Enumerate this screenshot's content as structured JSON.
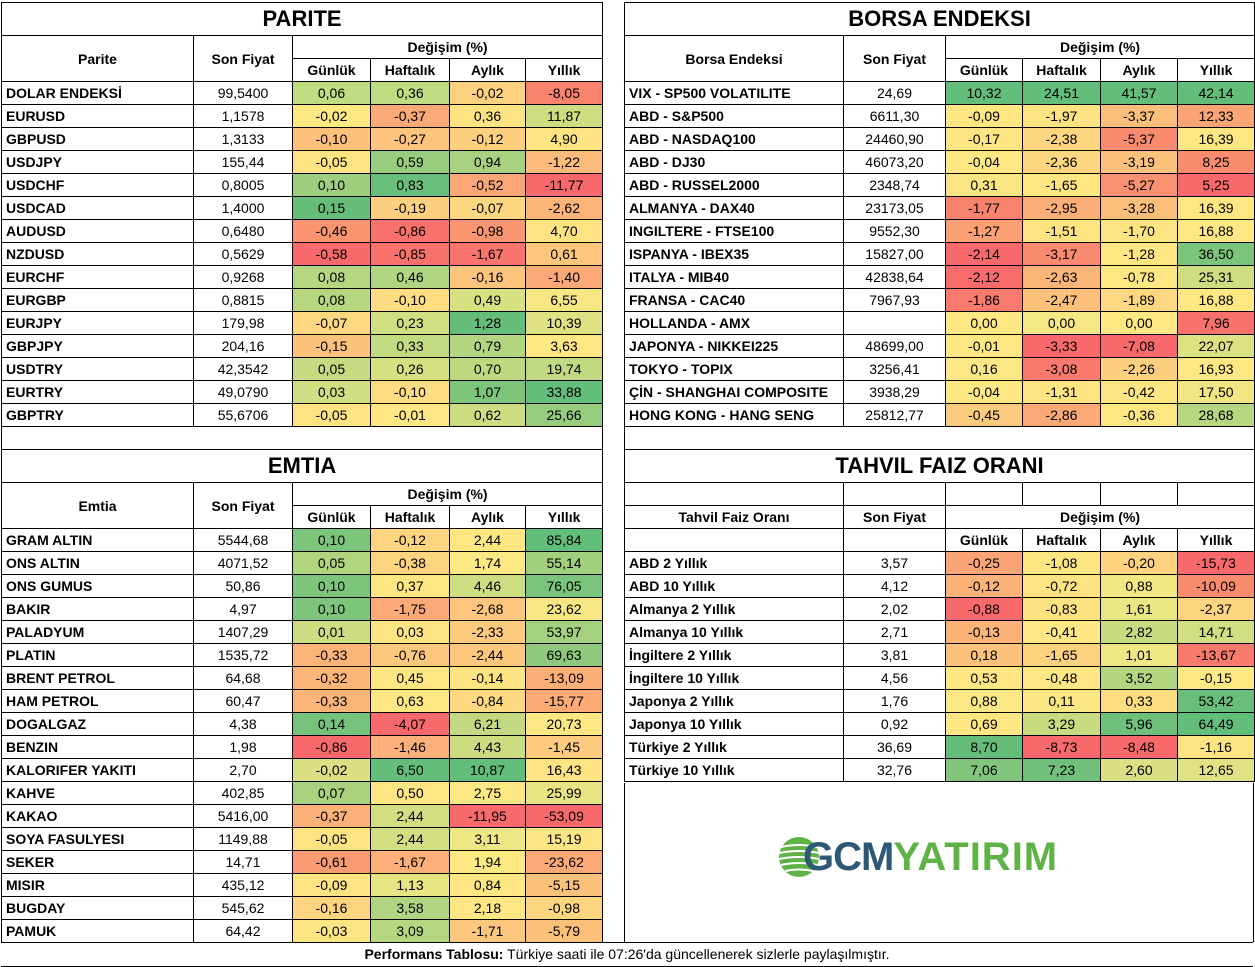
{
  "headers": {
    "son_fiyat": "Son Fiyat",
    "degisim": "Değişim (%)",
    "gunluk": "Günlük",
    "haftalik": "Haftalık",
    "aylik": "Aylık",
    "yillik": "Yıllık"
  },
  "parite": {
    "title": "PARITE",
    "col_name": "Parite",
    "rows": [
      {
        "name": "DOLAR ENDEKSİ",
        "price": "99,5400",
        "d": "0,06",
        "w": "0,36",
        "m": "-0,02",
        "y": "-8,05"
      },
      {
        "name": "EURUSD",
        "price": "1,1578",
        "d": "-0,02",
        "w": "-0,37",
        "m": "0,36",
        "y": "11,87"
      },
      {
        "name": "GBPUSD",
        "price": "1,3133",
        "d": "-0,10",
        "w": "-0,27",
        "m": "-0,12",
        "y": "4,90"
      },
      {
        "name": "USDJPY",
        "price": "155,44",
        "d": "-0,05",
        "w": "0,59",
        "m": "0,94",
        "y": "-1,22"
      },
      {
        "name": "USDCHF",
        "price": "0,8005",
        "d": "0,10",
        "w": "0,83",
        "m": "-0,52",
        "y": "-11,77"
      },
      {
        "name": "USDCAD",
        "price": "1,4000",
        "d": "0,15",
        "w": "-0,19",
        "m": "-0,07",
        "y": "-2,62"
      },
      {
        "name": "AUDUSD",
        "price": "0,6480",
        "d": "-0,46",
        "w": "-0,86",
        "m": "-0,98",
        "y": "4,70"
      },
      {
        "name": "NZDUSD",
        "price": "0,5629",
        "d": "-0,58",
        "w": "-0,85",
        "m": "-1,67",
        "y": "0,61"
      },
      {
        "name": "EURCHF",
        "price": "0,9268",
        "d": "0,08",
        "w": "0,46",
        "m": "-0,16",
        "y": "-1,40"
      },
      {
        "name": "EURGBP",
        "price": "0,8815",
        "d": "0,08",
        "w": "-0,10",
        "m": "0,49",
        "y": "6,55"
      },
      {
        "name": "EURJPY",
        "price": "179,98",
        "d": "-0,07",
        "w": "0,23",
        "m": "1,28",
        "y": "10,39"
      },
      {
        "name": "GBPJPY",
        "price": "204,16",
        "d": "-0,15",
        "w": "0,33",
        "m": "0,79",
        "y": "3,63"
      },
      {
        "name": "USDTRY",
        "price": "42,3542",
        "d": "0,05",
        "w": "0,26",
        "m": "0,70",
        "y": "19,74"
      },
      {
        "name": "EURTRY",
        "price": "49,0790",
        "d": "0,03",
        "w": "-0,10",
        "m": "1,07",
        "y": "33,88"
      },
      {
        "name": "GBPTRY",
        "price": "55,6706",
        "d": "-0,05",
        "w": "-0,01",
        "m": "0,62",
        "y": "25,66"
      }
    ],
    "colors": [
      [
        "#c0dc80",
        "#c0dc80",
        "#fdd17f",
        "#f8836c"
      ],
      [
        "#fde984",
        "#fbaa77",
        "#fee383",
        "#cddd82"
      ],
      [
        "#fcc07b",
        "#fcc47c",
        "#fdd07f",
        "#fee483"
      ],
      [
        "#fde382",
        "#98cd7e",
        "#a8d27f",
        "#fcbb7a"
      ],
      [
        "#9fcf7e",
        "#6abe7b",
        "#fba676",
        "#f8696b"
      ],
      [
        "#66bd7a",
        "#fdd07f",
        "#fdd680",
        "#fcb479"
      ],
      [
        "#f99370",
        "#f8716c",
        "#fa9572",
        "#fee383"
      ],
      [
        "#f8696b",
        "#f8726c",
        "#f8746d",
        "#fdc67d"
      ],
      [
        "#b6d780",
        "#aed580",
        "#fcc47c",
        "#fba976"
      ],
      [
        "#b6d780",
        "#fddc82",
        "#d8e082",
        "#f7e684"
      ],
      [
        "#fdd880",
        "#d1df82",
        "#66bd7a",
        "#dfe283"
      ],
      [
        "#fbc27c",
        "#c3da81",
        "#b3d680",
        "#ffe884"
      ],
      [
        "#c5da81",
        "#d6df82",
        "#bed880",
        "#c2d981"
      ],
      [
        "#d0dd82",
        "#fddc82",
        "#7ec57c",
        "#63be7b"
      ],
      [
        "#fee383",
        "#fee784",
        "#cbdc81",
        "#96cc7e"
      ]
    ]
  },
  "borsa": {
    "title": "BORSA ENDEKSI",
    "col_name": "Borsa Endeksi",
    "rows": [
      {
        "name": "VIX  - SP500 VOLATILITE",
        "price": "24,69",
        "d": "10,32",
        "w": "24,51",
        "m": "41,57",
        "y": "42,14"
      },
      {
        "name": "ABD - S&P500",
        "price": "6611,30",
        "d": "-0,09",
        "w": "-1,97",
        "m": "-3,37",
        "y": "12,33"
      },
      {
        "name": "ABD - NASDAQ100",
        "price": "24460,90",
        "d": "-0,17",
        "w": "-2,38",
        "m": "-5,37",
        "y": "16,39"
      },
      {
        "name": "ABD - DJ30",
        "price": "46073,20",
        "d": "-0,04",
        "w": "-2,36",
        "m": "-3,19",
        "y": "8,25"
      },
      {
        "name": "ABD - RUSSEL2000",
        "price": "2348,74",
        "d": "0,31",
        "w": "-1,65",
        "m": "-5,27",
        "y": "5,25"
      },
      {
        "name": "ALMANYA - DAX40",
        "price": "23173,05",
        "d": "-1,77",
        "w": "-2,95",
        "m": "-3,28",
        "y": "16,39"
      },
      {
        "name": "INGILTERE - FTSE100",
        "price": "9552,30",
        "d": "-1,27",
        "w": "-1,51",
        "m": "-1,70",
        "y": "16,88"
      },
      {
        "name": "ISPANYA - IBEX35",
        "price": "15827,00",
        "d": "-2,14",
        "w": "-3,17",
        "m": "-1,28",
        "y": "36,50"
      },
      {
        "name": "ITALYA - MIB40",
        "price": "42838,64",
        "d": "-2,12",
        "w": "-2,63",
        "m": "-0,78",
        "y": "25,31"
      },
      {
        "name": "FRANSA - CAC40",
        "price": "7967,93",
        "d": "-1,86",
        "w": "-2,47",
        "m": "-1,89",
        "y": "16,88"
      },
      {
        "name": "HOLLANDA - AMX",
        "price": "",
        "d": "0,00",
        "w": "0,00",
        "m": "0,00",
        "y": "7,96"
      },
      {
        "name": "JAPONYA - NIKKEI225",
        "price": "48699,00",
        "d": "-0,01",
        "w": "-3,33",
        "m": "-7,08",
        "y": "22,07"
      },
      {
        "name": "TOKYO - TOPIX",
        "price": "3256,41",
        "d": "0,16",
        "w": "-3,08",
        "m": "-2,26",
        "y": "16,93"
      },
      {
        "name": "ÇİN - SHANGHAI COMPOSITE",
        "price": "3938,29",
        "d": "-0,04",
        "w": "-1,31",
        "m": "-0,42",
        "y": "17,50"
      },
      {
        "name": "HONG KONG - HANG SENG",
        "price": "25812,77",
        "d": "-0,45",
        "w": "-2,86",
        "m": "-0,36",
        "y": "28,68"
      }
    ],
    "colors": [
      [
        "#63be7b",
        "#63be7b",
        "#63be7b",
        "#63be7b"
      ],
      [
        "#fee783",
        "#fee382",
        "#fcbe7b",
        "#fba476"
      ],
      [
        "#fee583",
        "#fed680",
        "#f98b6f",
        "#fee683"
      ],
      [
        "#fee884",
        "#fdd680",
        "#fcc27c",
        "#f98b6f"
      ],
      [
        "#fae585",
        "#fee683",
        "#f9906f",
        "#f8696b"
      ],
      [
        "#f8836d",
        "#fcae77",
        "#fcbf7b",
        "#fee683"
      ],
      [
        "#fba174",
        "#fde382",
        "#fde482",
        "#ffe884"
      ],
      [
        "#f8696b",
        "#f9896f",
        "#fee683",
        "#7cc47c"
      ],
      [
        "#f86d6b",
        "#fcb579",
        "#ffe884",
        "#cfdd82"
      ],
      [
        "#f87b6d",
        "#fcc07b",
        "#fed781",
        "#ffe884"
      ],
      [
        "#fde883",
        "#f4e784",
        "#fee884",
        "#f8726c"
      ],
      [
        "#fee884",
        "#f8696b",
        "#f8696b",
        "#dce182"
      ],
      [
        "#fbe785",
        "#f97a6d",
        "#fdcf7f",
        "#ffe784"
      ],
      [
        "#fee884",
        "#fde482",
        "#fee583",
        "#f2e583"
      ],
      [
        "#fccb7e",
        "#fbaa77",
        "#fee683",
        "#b5d780"
      ]
    ]
  },
  "emtia": {
    "title": "EMTIA",
    "col_name": "Emtia",
    "rows": [
      {
        "name": "GRAM ALTIN",
        "price": "5544,68",
        "d": "0,10",
        "w": "-0,12",
        "m": "2,44",
        "y": "85,84"
      },
      {
        "name": "ONS ALTIN",
        "price": "4071,52",
        "d": "0,05",
        "w": "-0,38",
        "m": "1,74",
        "y": "55,14"
      },
      {
        "name": "ONS GUMUS",
        "price": "50,86",
        "d": "0,10",
        "w": "0,37",
        "m": "4,46",
        "y": "76,05"
      },
      {
        "name": "BAKIR",
        "price": "4,97",
        "d": "0,10",
        "w": "-1,75",
        "m": "-2,68",
        "y": "23,62"
      },
      {
        "name": "PALADYUM",
        "price": "1407,29",
        "d": "0,01",
        "w": "0,03",
        "m": "-2,33",
        "y": "53,97"
      },
      {
        "name": "PLATIN",
        "price": "1535,72",
        "d": "-0,33",
        "w": "-0,76",
        "m": "-2,44",
        "y": "69,63"
      },
      {
        "name": "BRENT PETROL",
        "price": "64,68",
        "d": "-0,32",
        "w": "0,45",
        "m": "-0,14",
        "y": "-13,09"
      },
      {
        "name": "HAM PETROL",
        "price": "60,47",
        "d": "-0,33",
        "w": "0,63",
        "m": "-0,84",
        "y": "-15,77"
      },
      {
        "name": "DOGALGAZ",
        "price": "4,38",
        "d": "0,14",
        "w": "-4,07",
        "m": "6,21",
        "y": "20,73"
      },
      {
        "name": "BENZIN",
        "price": "1,98",
        "d": "-0,86",
        "w": "-1,46",
        "m": "4,43",
        "y": "-1,45"
      },
      {
        "name": "KALORIFER YAKITI",
        "price": "2,70",
        "d": "-0,02",
        "w": "6,50",
        "m": "10,87",
        "y": "16,43"
      },
      {
        "name": "KAHVE",
        "price": "402,85",
        "d": "0,07",
        "w": "0,50",
        "m": "2,75",
        "y": "25,99"
      },
      {
        "name": "KAKAO",
        "price": "5416,00",
        "d": "-0,37",
        "w": "2,44",
        "m": "-11,95",
        "y": "-53,09"
      },
      {
        "name": "SOYA FASULYESI",
        "price": "1149,88",
        "d": "-0,05",
        "w": "2,44",
        "m": "3,11",
        "y": "15,19"
      },
      {
        "name": "SEKER",
        "price": "14,71",
        "d": "-0,61",
        "w": "-1,67",
        "m": "1,94",
        "y": "-23,62"
      },
      {
        "name": "MISIR",
        "price": "435,12",
        "d": "-0,09",
        "w": "1,13",
        "m": "0,84",
        "y": "-5,15"
      },
      {
        "name": "BUGDAY",
        "price": "545,62",
        "d": "-0,16",
        "w": "3,58",
        "m": "2,18",
        "y": "-0,98"
      },
      {
        "name": "PAMUK",
        "price": "64,42",
        "d": "-0,03",
        "w": "3,09",
        "m": "-1,71",
        "y": "-5,79"
      }
    ],
    "colors": [
      [
        "#7ec57c",
        "#fdd480",
        "#fde783",
        "#63be7b"
      ],
      [
        "#b1d57f",
        "#fdd480",
        "#fde984",
        "#a2cf7e"
      ],
      [
        "#7ec57c",
        "#fee683",
        "#cddd82",
        "#7bc47c"
      ],
      [
        "#7ec57c",
        "#fbaa77",
        "#fdc57d",
        "#f6e784"
      ],
      [
        "#ccdc81",
        "#fee583",
        "#fdca7e",
        "#a4d17f"
      ],
      [
        "#fcb479",
        "#fcc87d",
        "#fdc77d",
        "#8fc97d"
      ],
      [
        "#fcb579",
        "#fee783",
        "#fee383",
        "#fbaf77"
      ],
      [
        "#fcb479",
        "#fee783",
        "#fed981",
        "#fcab77"
      ],
      [
        "#76c27c",
        "#f8696b",
        "#c2d981",
        "#fde684"
      ],
      [
        "#f8696b",
        "#fcaf78",
        "#cbdc81",
        "#fdca7e"
      ],
      [
        "#dae083",
        "#63be7b",
        "#63be7b",
        "#fde383"
      ],
      [
        "#a9d27f",
        "#fee683",
        "#fde984",
        "#e8e483"
      ],
      [
        "#fcb178",
        "#d3de82",
        "#f8696b",
        "#f8696b"
      ],
      [
        "#fee383",
        "#d3de82",
        "#efe784",
        "#fee584"
      ],
      [
        "#f99b72",
        "#fcaf78",
        "#fde984",
        "#fba976"
      ],
      [
        "#fde382",
        "#e7e483",
        "#fee683",
        "#fcc27c"
      ],
      [
        "#fdd580",
        "#b0d580",
        "#fde784",
        "#fdd680"
      ],
      [
        "#fee584",
        "#b5d780",
        "#fdc87d",
        "#fcc07b"
      ]
    ]
  },
  "tahvil": {
    "title": "TAHVIL FAIZ ORANI",
    "col_name": "Tahvil Faiz Oranı",
    "rows": [
      {
        "name": "ABD 2 Yıllık",
        "price": "3,57",
        "d": "-0,25",
        "w": "-1,08",
        "m": "-0,20",
        "y": "-15,73"
      },
      {
        "name": "ABD 10 Yıllık",
        "price": "4,12",
        "d": "-0,12",
        "w": "-0,72",
        "m": "0,88",
        "y": "-10,09"
      },
      {
        "name": "Almanya 2 Yıllık",
        "price": "2,02",
        "d": "-0,88",
        "w": "-0,83",
        "m": "1,61",
        "y": "-2,37"
      },
      {
        "name": "Almanya 10 Yıllık",
        "price": "2,71",
        "d": "-0,13",
        "w": "-0,41",
        "m": "2,82",
        "y": "14,71"
      },
      {
        "name": "İngiltere 2 Yıllık",
        "price": "3,81",
        "d": "0,18",
        "w": "-1,65",
        "m": "1,01",
        "y": "-13,67"
      },
      {
        "name": "İngiltere 10 Yıllık",
        "price": "4,56",
        "d": "0,53",
        "w": "-0,48",
        "m": "3,52",
        "y": "-0,15"
      },
      {
        "name": "Japonya 2 Yıllık",
        "price": "1,76",
        "d": "0,88",
        "w": "0,11",
        "m": "0,33",
        "y": "53,42"
      },
      {
        "name": "Japonya 10 Yıllık",
        "price": "0,92",
        "d": "0,69",
        "w": "3,29",
        "m": "5,96",
        "y": "64,49"
      },
      {
        "name": "Türkiye 2 Yıllık",
        "price": "36,69",
        "d": "8,70",
        "w": "-8,73",
        "m": "-8,48",
        "y": "-1,16"
      },
      {
        "name": "Türkiye 10 Yıllık",
        "price": "32,76",
        "d": "7,06",
        "w": "7,23",
        "m": "2,60",
        "y": "12,65"
      }
    ],
    "colors": [
      [
        "#fba576",
        "#fde582",
        "#fdd37f",
        "#f8696b"
      ],
      [
        "#fbb379",
        "#fee383",
        "#f3e784",
        "#f98c6f"
      ],
      [
        "#f8696b",
        "#fde282",
        "#eae683",
        "#fdd47f"
      ],
      [
        "#fbb378",
        "#fee784",
        "#c9db81",
        "#d2de82"
      ],
      [
        "#fcc27c",
        "#fcd27f",
        "#efe684",
        "#f87a6d"
      ],
      [
        "#fee683",
        "#fee784",
        "#b5d680",
        "#fde984"
      ],
      [
        "#fae785",
        "#fae783",
        "#fedd81",
        "#6abe7b"
      ],
      [
        "#fee683",
        "#c9db81",
        "#6fc07b",
        "#63be7b"
      ],
      [
        "#66bd7a",
        "#f8696b",
        "#f8696b",
        "#fde583"
      ],
      [
        "#81c67c",
        "#70c07b",
        "#dae083",
        "#e1e283"
      ]
    ]
  },
  "logo": {
    "part1": "GCM",
    "part2": "YATIRIM"
  },
  "footer": {
    "bold": "Performans Tablosu:",
    "text": " Türkiye saati ile 07:26'da güncellenerek sizlerle paylaşılmıştır."
  }
}
